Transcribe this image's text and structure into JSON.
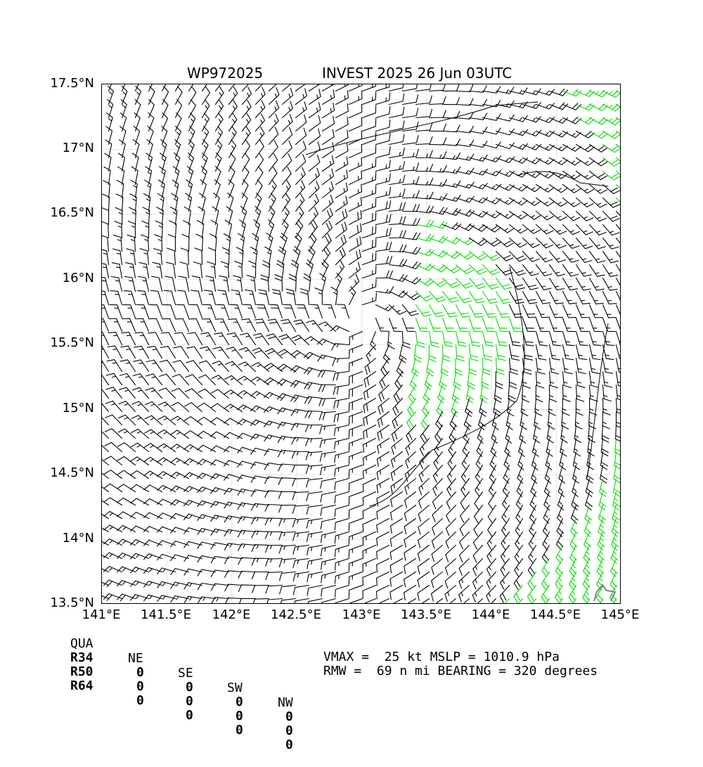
{
  "title": {
    "left": "WP972025",
    "right": "INVEST 2025 26 Jun 03UTC"
  },
  "axes": {
    "lon_ticks": [
      "141°E",
      "141.5°E",
      "142°E",
      "142.5°E",
      "143°E",
      "143.5°E",
      "144°E",
      "144.5°E",
      "145°E"
    ],
    "lat_ticks": [
      "17.5°N",
      "17°N",
      "16.5°N",
      "16°N",
      "15.5°N",
      "15°N",
      "14.5°N",
      "14°N",
      "13.5°N"
    ],
    "lon_range": [
      141,
      145
    ],
    "lat_range": [
      13.5,
      17.5
    ],
    "grid": true
  },
  "wind_field": {
    "center_lon": 143.0,
    "center_lat": 15.7,
    "highlight_color": "#00dd00",
    "barb_color": "#000000",
    "land_marker_color": "#808080"
  },
  "radii_table": {
    "header": [
      "QUA",
      "NE",
      "SE",
      "SW",
      "NW"
    ],
    "rows": [
      {
        "label": "R34",
        "values": [
          "0",
          "0",
          "0",
          "0"
        ]
      },
      {
        "label": "R50",
        "values": [
          "0",
          "0",
          "0",
          "0"
        ]
      },
      {
        "label": "R64",
        "values": [
          "0",
          "0",
          "0",
          "0"
        ]
      }
    ]
  },
  "info": {
    "line1": "VMAX =  25 kt MSLP = 1010.9 hPa",
    "line2": "RMW =  69 n mi BEARING = 320 degrees"
  }
}
